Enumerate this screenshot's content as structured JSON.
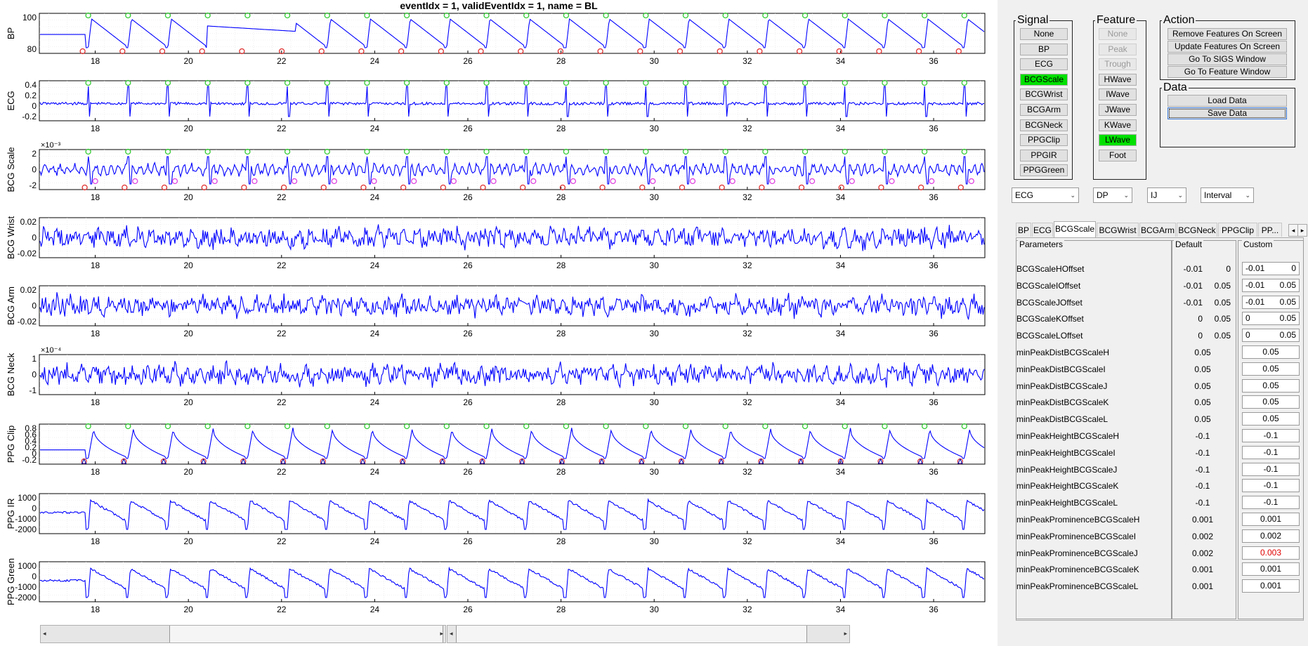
{
  "title": "eventIdx = 1, validEventIdx = 1, name = BL",
  "x_ticks": [
    "18",
    "20",
    "22",
    "24",
    "26",
    "28",
    "30",
    "32",
    "34",
    "36"
  ],
  "axes": [
    {
      "name": "bp",
      "label": "BP",
      "ticks": [
        "100",
        "80"
      ],
      "scale_note": "",
      "kind": "bp"
    },
    {
      "name": "ecg",
      "label": "ECG",
      "ticks": [
        "0.4",
        "0.2",
        "0",
        "-0.2"
      ],
      "scale_note": "",
      "kind": "ecg"
    },
    {
      "name": "bcg-scale",
      "label": "BCG Scale",
      "ticks": [
        "2",
        "0",
        "-2"
      ],
      "scale_note": "×10⁻³",
      "kind": "bcgscale"
    },
    {
      "name": "bcg-wrist",
      "label": "BCG Wrist",
      "ticks": [
        "0.02",
        "0",
        "-0.02"
      ],
      "scale_note": "",
      "kind": "noise"
    },
    {
      "name": "bcg-arm",
      "label": "BCG Arm",
      "ticks": [
        "0.02",
        "0",
        "-0.02"
      ],
      "scale_note": "",
      "kind": "noise"
    },
    {
      "name": "bcg-neck",
      "label": "BCG Neck",
      "ticks": [
        "1",
        "0",
        "-1"
      ],
      "scale_note": "×10⁻⁴",
      "kind": "noise"
    },
    {
      "name": "ppg-clip",
      "label": "PPG Clip",
      "ticks": [
        "0.8",
        "0.6",
        "0.4",
        "0.2",
        "0",
        "-0.2"
      ],
      "scale_note": "",
      "kind": "ppg"
    },
    {
      "name": "ppg-ir",
      "label": "PPG IR",
      "ticks": [
        "1000",
        "0",
        "-1000",
        "-2000"
      ],
      "scale_note": "",
      "kind": "ppgir"
    },
    {
      "name": "ppg-green",
      "label": "PPG Green",
      "ticks": [
        "1000",
        "0",
        "-1000",
        "-2000"
      ],
      "scale_note": "",
      "kind": "ppgir"
    }
  ],
  "signal_group": {
    "legend": "Signal",
    "buttons": [
      {
        "label": "None",
        "state": "normal"
      },
      {
        "label": "BP",
        "state": "normal"
      },
      {
        "label": "ECG",
        "state": "normal"
      },
      {
        "label": "BCGScale",
        "state": "active"
      },
      {
        "label": "BCGWrist",
        "state": "normal"
      },
      {
        "label": "BCGArm",
        "state": "normal"
      },
      {
        "label": "BCGNeck",
        "state": "normal"
      },
      {
        "label": "PPGClip",
        "state": "normal"
      },
      {
        "label": "PPGIR",
        "state": "normal"
      },
      {
        "label": "PPGGreen",
        "state": "normal"
      }
    ]
  },
  "feature_group": {
    "legend": "Feature",
    "buttons": [
      {
        "label": "None",
        "state": "disabled"
      },
      {
        "label": "Peak",
        "state": "disabled"
      },
      {
        "label": "Trough",
        "state": "disabled"
      },
      {
        "label": "HWave",
        "state": "normal"
      },
      {
        "label": "IWave",
        "state": "normal"
      },
      {
        "label": "JWave",
        "state": "normal"
      },
      {
        "label": "KWave",
        "state": "normal"
      },
      {
        "label": "LWave",
        "state": "active"
      },
      {
        "label": "Foot",
        "state": "normal"
      }
    ]
  },
  "action_group": {
    "legend": "Action",
    "buttons": [
      {
        "label": "Remove Features On Screen"
      },
      {
        "label": "Update Features On Screen"
      },
      {
        "label": "Go To SIGS Window"
      },
      {
        "label": "Go To Feature Window"
      }
    ]
  },
  "data_group": {
    "legend": "Data",
    "buttons": [
      {
        "label": "Load Data"
      },
      {
        "label": "Save Data"
      }
    ]
  },
  "dropdowns": [
    {
      "name": "signal-select",
      "value": "ECG"
    },
    {
      "name": "method-select",
      "value": "DP"
    },
    {
      "name": "wave-select",
      "value": "IJ"
    },
    {
      "name": "mode-select",
      "value": "Interval"
    }
  ],
  "tabs": [
    {
      "label": "BP",
      "active": false
    },
    {
      "label": "ECG",
      "active": false
    },
    {
      "label": "BCGScale",
      "active": true
    },
    {
      "label": "BCGWrist",
      "active": false
    },
    {
      "label": "BCGArm",
      "active": false
    },
    {
      "label": "BCGNeck",
      "active": false
    },
    {
      "label": "PPGClip",
      "active": false
    },
    {
      "label": "PP...",
      "active": false
    }
  ],
  "param_headers": {
    "parameters": "Parameters",
    "default": "Default",
    "custom": "Custom"
  },
  "params": [
    {
      "name": "BCGScaleHOffset",
      "default": [
        "-0.01",
        "0"
      ],
      "custom": [
        "-0.01",
        "0"
      ]
    },
    {
      "name": "BCGScaleIOffset",
      "default": [
        "-0.01",
        "0.05"
      ],
      "custom": [
        "-0.01",
        "0.05"
      ]
    },
    {
      "name": "BCGScaleJOffset",
      "default": [
        "-0.01",
        "0.05"
      ],
      "custom": [
        "-0.01",
        "0.05"
      ]
    },
    {
      "name": "BCGScaleKOffset",
      "default": [
        "0",
        "0.05"
      ],
      "custom": [
        "0",
        "0.05"
      ]
    },
    {
      "name": "BCGScaleLOffset",
      "default": [
        "0",
        "0.05"
      ],
      "custom": [
        "0",
        "0.05"
      ]
    },
    {
      "name": "minPeakDistBCGScaleH",
      "default": [
        "0.05"
      ],
      "custom": [
        "0.05"
      ]
    },
    {
      "name": "minPeakDistBCGScaleI",
      "default": [
        "0.05"
      ],
      "custom": [
        "0.05"
      ]
    },
    {
      "name": "minPeakDistBCGScaleJ",
      "default": [
        "0.05"
      ],
      "custom": [
        "0.05"
      ]
    },
    {
      "name": "minPeakDistBCGScaleK",
      "default": [
        "0.05"
      ],
      "custom": [
        "0.05"
      ]
    },
    {
      "name": "minPeakDistBCGScaleL",
      "default": [
        "0.05"
      ],
      "custom": [
        "0.05"
      ]
    },
    {
      "name": "minPeakHeightBCGScaleH",
      "default": [
        "-0.1"
      ],
      "custom": [
        "-0.1"
      ]
    },
    {
      "name": "minPeakHeightBCGScaleI",
      "default": [
        "-0.1"
      ],
      "custom": [
        "-0.1"
      ]
    },
    {
      "name": "minPeakHeightBCGScaleJ",
      "default": [
        "-0.1"
      ],
      "custom": [
        "-0.1"
      ]
    },
    {
      "name": "minPeakHeightBCGScaleK",
      "default": [
        "-0.1"
      ],
      "custom": [
        "-0.1"
      ]
    },
    {
      "name": "minPeakHeightBCGScaleL",
      "default": [
        "-0.1"
      ],
      "custom": [
        "-0.1"
      ]
    },
    {
      "name": "minPeakProminenceBCGScaleH",
      "default": [
        "0.001"
      ],
      "custom": [
        "0.001"
      ]
    },
    {
      "name": "minPeakProminenceBCGScaleI",
      "default": [
        "0.002"
      ],
      "custom": [
        "0.002"
      ]
    },
    {
      "name": "minPeakProminenceBCGScaleJ",
      "default": [
        "0.002"
      ],
      "custom": [
        "0.003"
      ],
      "modified": true
    },
    {
      "name": "minPeakProminenceBCGScaleK",
      "default": [
        "0.001"
      ],
      "custom": [
        "0.001"
      ]
    },
    {
      "name": "minPeakProminenceBCGScaleL",
      "default": [
        "0.001"
      ],
      "custom": [
        "0.001"
      ]
    }
  ],
  "colors": {
    "trace": "#0000ff",
    "peak_marker": "#33cc33",
    "trough_marker": "#e03030",
    "feature_marker": "#e040e0",
    "active_button": "#00e000",
    "modified_value": "#e00000"
  }
}
